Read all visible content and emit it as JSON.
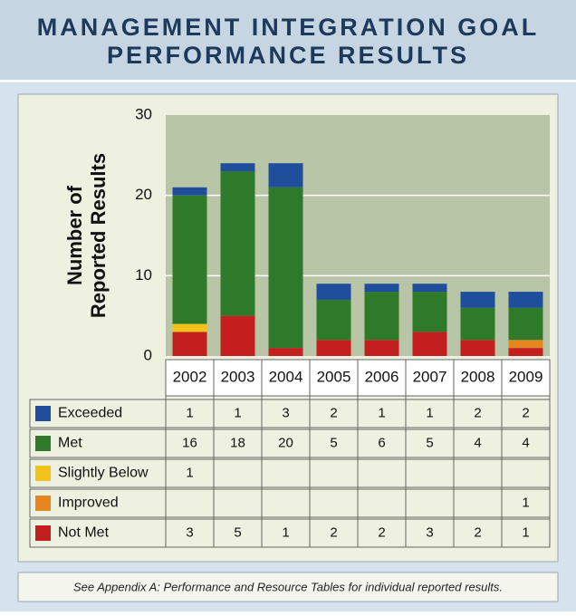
{
  "chart_data": {
    "type": "stacked_bar",
    "title": [
      "MANAGEMENT INTEGRATION GOAL",
      "PERFORMANCE RESULTS"
    ],
    "ylabel": [
      "Number of",
      "Reported Results"
    ],
    "categories": [
      "2002",
      "2003",
      "2004",
      "2005",
      "2006",
      "2007",
      "2008",
      "2009"
    ],
    "series": [
      {
        "name": "Exceeded",
        "color": "#1f4f9c",
        "values": [
          1,
          1,
          3,
          2,
          1,
          1,
          2,
          2
        ]
      },
      {
        "name": "Met",
        "color": "#2f7a2a",
        "values": [
          16,
          18,
          20,
          5,
          6,
          5,
          4,
          4
        ]
      },
      {
        "name": "Slightly Below",
        "color": "#f2c21a",
        "values": [
          1,
          null,
          null,
          null,
          null,
          null,
          null,
          null
        ]
      },
      {
        "name": "Improved",
        "color": "#e5871e",
        "values": [
          null,
          null,
          null,
          null,
          null,
          null,
          null,
          1
        ]
      },
      {
        "name": "Not Met",
        "color": "#c41f1f",
        "values": [
          3,
          5,
          1,
          2,
          2,
          3,
          2,
          1
        ]
      }
    ],
    "ylim": [
      0,
      30
    ],
    "yticks": [
      0,
      10,
      20,
      30
    ],
    "grid": true,
    "footnote": "See Appendix A: Performance and Resource Tables for individual reported results."
  }
}
